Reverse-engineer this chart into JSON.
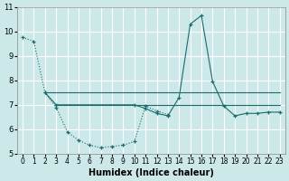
{
  "xlabel": "Humidex (Indice chaleur)",
  "bg_color": "#cce8e8",
  "grid_color": "#ffffff",
  "line_color": "#1a6b6b",
  "xlim": [
    -0.5,
    23.5
  ],
  "ylim": [
    5,
    11
  ],
  "yticks": [
    5,
    6,
    7,
    8,
    9,
    10,
    11
  ],
  "xticks": [
    0,
    1,
    2,
    3,
    4,
    5,
    6,
    7,
    8,
    9,
    10,
    11,
    12,
    13,
    14,
    15,
    16,
    17,
    18,
    19,
    20,
    21,
    22,
    23
  ],
  "series": [
    {
      "x": [
        0,
        1,
        2,
        3,
        4,
        5,
        6,
        7,
        8,
        9,
        10,
        11,
        12,
        13
      ],
      "y": [
        9.75,
        9.6,
        7.5,
        6.9,
        5.9,
        5.55,
        5.35,
        5.25,
        5.3,
        5.35,
        5.5,
        6.95,
        6.75,
        6.6
      ],
      "linestyle": "dotted",
      "marker": "+"
    },
    {
      "x": [
        2,
        23
      ],
      "y": [
        7.5,
        7.5
      ],
      "linestyle": "solid",
      "marker": null
    },
    {
      "x": [
        3,
        23
      ],
      "y": [
        7.0,
        7.0
      ],
      "linestyle": "solid",
      "marker": null
    },
    {
      "x": [
        2,
        3,
        10,
        11,
        12,
        13,
        14,
        15,
        16,
        17,
        18,
        19,
        20,
        21,
        22,
        23
      ],
      "y": [
        7.5,
        7.0,
        7.0,
        6.85,
        6.65,
        6.55,
        7.3,
        10.3,
        10.65,
        7.95,
        6.95,
        6.55,
        6.65,
        6.65,
        6.7,
        6.7
      ],
      "linestyle": "solid",
      "marker": "+"
    }
  ]
}
